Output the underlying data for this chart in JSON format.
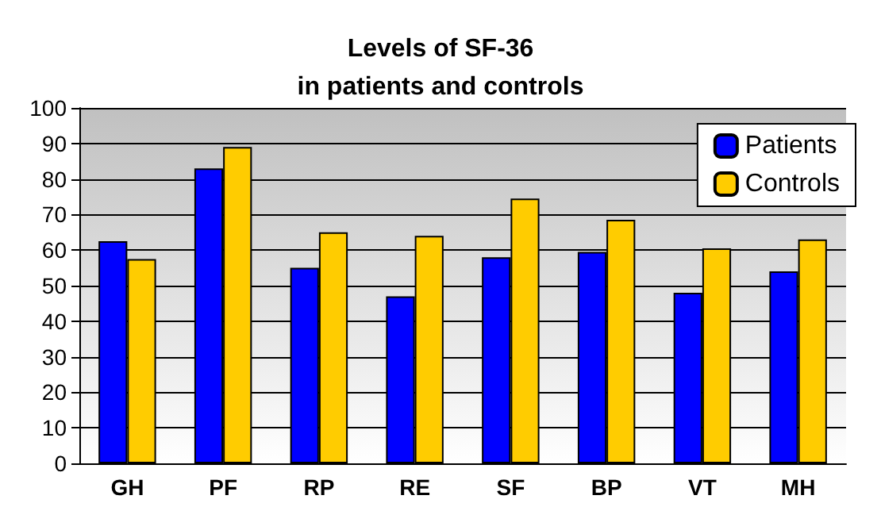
{
  "chart_data": {
    "type": "bar",
    "title": "Levels of SF-36\nin patients and controls",
    "categories": [
      "GH",
      "PF",
      "RP",
      "RE",
      "SF",
      "BP",
      "VT",
      "MH"
    ],
    "series": [
      {
        "name": "Patients",
        "color": "#0000ff",
        "values": [
          62.5,
          83,
          55,
          47,
          58,
          59.5,
          48,
          54
        ]
      },
      {
        "name": "Controls",
        "color": "#ffcc00",
        "values": [
          57.5,
          89,
          65,
          64,
          74.5,
          68.5,
          60.5,
          63
        ]
      }
    ],
    "ylim": [
      0,
      100
    ],
    "yticks": [
      0,
      10,
      20,
      30,
      40,
      50,
      60,
      70,
      80,
      90,
      100
    ],
    "grid": "y",
    "legend": "top right"
  }
}
